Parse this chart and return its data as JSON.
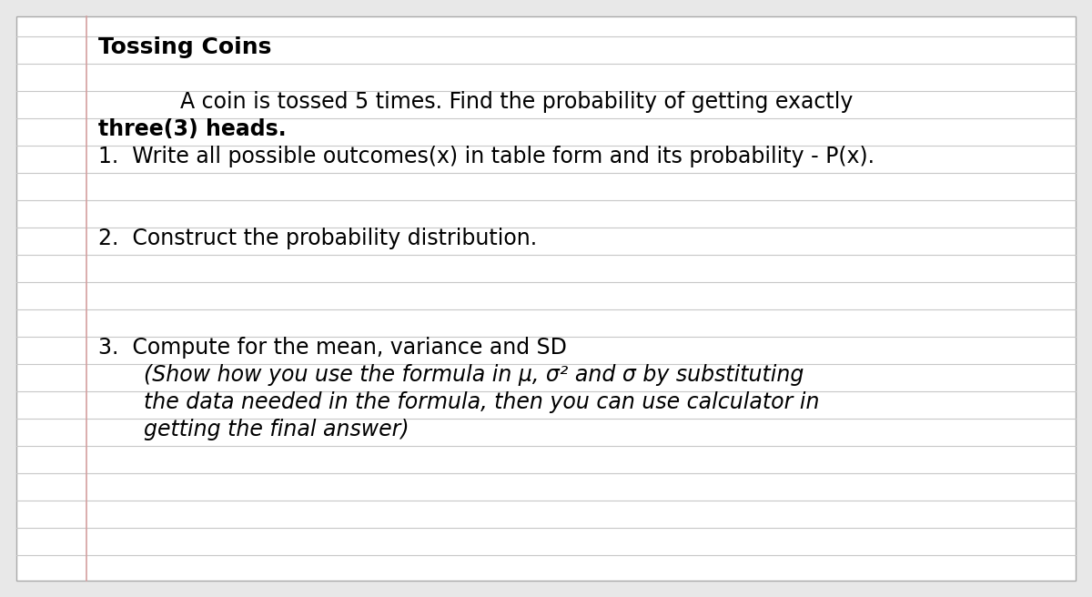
{
  "title": "Tossing Coins",
  "bg_color": "#e8e8e8",
  "page_color": "#ffffff",
  "title_color": "#000000",
  "text_color": "#000000",
  "line_color": "#c8c8c8",
  "margin_line_color": "#b8b8b8",
  "title_fontsize": 18,
  "body_fontsize": 17,
  "line1": "A coin is tossed 5 times. Find the probability of getting exactly",
  "line2_bold": "three(3) heads.",
  "line3": "1.  Write all possible outcomes(x) in table form and its probability - P(x).",
  "line4": "2.  Construct the probability distribution.",
  "line5": "3.  Compute for the mean, variance and SD",
  "line6_italic": "(Show how you use the formula in μ, σ² and σ by substituting",
  "line7_italic": "the data needed in the formula, then you can use calculator in",
  "line8_italic": "getting the final answer)"
}
